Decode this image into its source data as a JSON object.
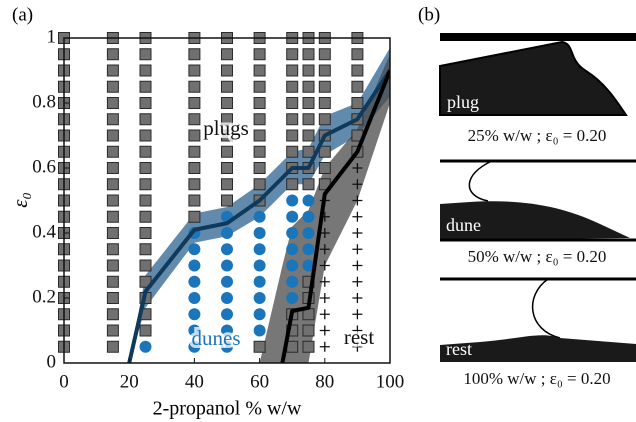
{
  "chart_data": {
    "type": "scatter",
    "panel_label": "(a)",
    "xlabel": "2-propanol % w/w",
    "ylabel": "ε₀",
    "xlim": [
      0,
      100
    ],
    "ylim": [
      0,
      1
    ],
    "xticks": [
      0,
      20,
      40,
      60,
      80,
      100
    ],
    "yticks": [
      0,
      0.2,
      0.4,
      0.6,
      0.8,
      1
    ],
    "marker_groups": [
      {
        "marker": "square",
        "color": "#707070",
        "columns": [
          {
            "x": 0,
            "y": [
              0.05,
              0.1,
              0.15,
              0.2,
              0.25,
              0.3,
              0.35,
              0.4,
              0.45,
              0.5,
              0.55,
              0.6,
              0.65,
              0.7,
              0.75,
              0.8,
              0.85,
              0.9,
              0.95,
              1
            ]
          },
          {
            "x": 15,
            "y": [
              0.05,
              0.1,
              0.15,
              0.2,
              0.25,
              0.3,
              0.35,
              0.4,
              0.45,
              0.5,
              0.55,
              0.6,
              0.65,
              0.7,
              0.75,
              0.8,
              0.85,
              0.9,
              0.95,
              1
            ]
          },
          {
            "x": 25,
            "y": [
              0.1,
              0.15,
              0.2,
              0.25,
              0.3,
              0.35,
              0.4,
              0.45,
              0.5,
              0.55,
              0.6,
              0.65,
              0.7,
              0.75,
              0.8,
              0.85,
              0.9,
              0.95,
              1
            ]
          },
          {
            "x": 40,
            "y": [
              0.45,
              0.5,
              0.55,
              0.6,
              0.65,
              0.7,
              0.75,
              0.8,
              0.85,
              0.9,
              0.95,
              1
            ]
          },
          {
            "x": 50,
            "y": [
              0.5,
              0.55,
              0.6,
              0.65,
              0.7,
              0.75,
              0.8,
              0.85,
              0.9,
              0.95,
              1
            ]
          },
          {
            "x": 60,
            "y": [
              0.05,
              0.5,
              0.55,
              0.6,
              0.65,
              0.7,
              0.75,
              0.8,
              0.85,
              0.9,
              0.95,
              1
            ]
          },
          {
            "x": 70,
            "y": [
              0.05,
              0.1,
              0.15,
              0.55,
              0.6,
              0.65,
              0.7,
              0.75,
              0.8,
              0.85,
              0.9,
              0.95,
              1
            ]
          },
          {
            "x": 75,
            "y": [
              0.05,
              0.1,
              0.15,
              0.2,
              0.25,
              0.55,
              0.6,
              0.65,
              0.7,
              0.75,
              0.8,
              0.85,
              0.9,
              0.95,
              1
            ]
          },
          {
            "x": 80,
            "y": [
              0.55,
              0.6,
              0.65,
              0.7,
              0.75,
              0.8,
              0.85,
              0.9,
              0.95,
              1
            ]
          },
          {
            "x": 90,
            "y": [
              0.65,
              0.7,
              0.75,
              0.8,
              0.85,
              0.9,
              0.95,
              1
            ]
          }
        ]
      },
      {
        "marker": "circle",
        "color": "#1b75bb",
        "columns": [
          {
            "x": 25,
            "y": [
              0.05
            ]
          },
          {
            "x": 40,
            "y": [
              0.05,
              0.1,
              0.15,
              0.2,
              0.25,
              0.3,
              0.35,
              0.4
            ]
          },
          {
            "x": 50,
            "y": [
              0.05,
              0.1,
              0.15,
              0.2,
              0.25,
              0.3,
              0.35,
              0.4,
              0.45
            ]
          },
          {
            "x": 60,
            "y": [
              0.1,
              0.15,
              0.2,
              0.25,
              0.3,
              0.35,
              0.4,
              0.45
            ]
          },
          {
            "x": 70,
            "y": [
              0.2,
              0.25,
              0.3,
              0.35,
              0.4,
              0.45,
              0.5
            ]
          },
          {
            "x": 75,
            "y": [
              0.3,
              0.35,
              0.4,
              0.45,
              0.5
            ]
          }
        ]
      },
      {
        "marker": "plus",
        "color": "#111111",
        "columns": [
          {
            "x": 80,
            "y": [
              0.05,
              0.1,
              0.15,
              0.2,
              0.25,
              0.3,
              0.35,
              0.4,
              0.45,
              0.5
            ]
          },
          {
            "x": 90,
            "y": [
              0.05,
              0.1,
              0.15,
              0.2,
              0.25,
              0.3,
              0.35,
              0.4,
              0.45,
              0.5,
              0.55,
              0.6
            ]
          }
        ]
      }
    ],
    "series": [
      {
        "color": "#0f3a5c",
        "band_color": "#2d6391",
        "x": [
          20,
          25,
          40,
          50,
          60,
          70,
          75,
          80,
          90,
          100
        ],
        "values": [
          0,
          0.22,
          0.41,
          0.43,
          0.5,
          0.6,
          0.6,
          0.7,
          0.75,
          0.9
        ],
        "lower": [
          0,
          0.17,
          0.37,
          0.39,
          0.45,
          0.55,
          0.55,
          0.64,
          0.7,
          0.82
        ],
        "upper": [
          0,
          0.27,
          0.46,
          0.48,
          0.55,
          0.65,
          0.66,
          0.76,
          0.8,
          0.97
        ]
      },
      {
        "color": "#000000",
        "band_color": "#4a4a4a",
        "x": [
          60,
          67,
          70,
          75,
          80,
          90,
          100
        ],
        "values": [
          null,
          0,
          0.16,
          0.17,
          0.52,
          0.65,
          0.9
        ],
        "lower": [
          0,
          0,
          0,
          0,
          0.3,
          0.5,
          0.8
        ],
        "upper": [
          0,
          0.3,
          0.42,
          0.47,
          0.6,
          0.72,
          0.95
        ]
      }
    ],
    "annotations": [
      {
        "text": "plugs",
        "color": "#111111"
      },
      {
        "text": "dunes",
        "color": "#1b75bb"
      },
      {
        "text": "rest",
        "color": "#111111"
      }
    ]
  },
  "panel_b": {
    "panel_label": "(b)",
    "frames": [
      {
        "label": "plug",
        "caption": "25% w/w ; ε₀ = 0.20"
      },
      {
        "label": "dune",
        "caption": "50% w/w ; ε₀ = 0.20"
      },
      {
        "label": "rest",
        "caption": "100% w/w ; ε₀ = 0.20"
      }
    ]
  }
}
